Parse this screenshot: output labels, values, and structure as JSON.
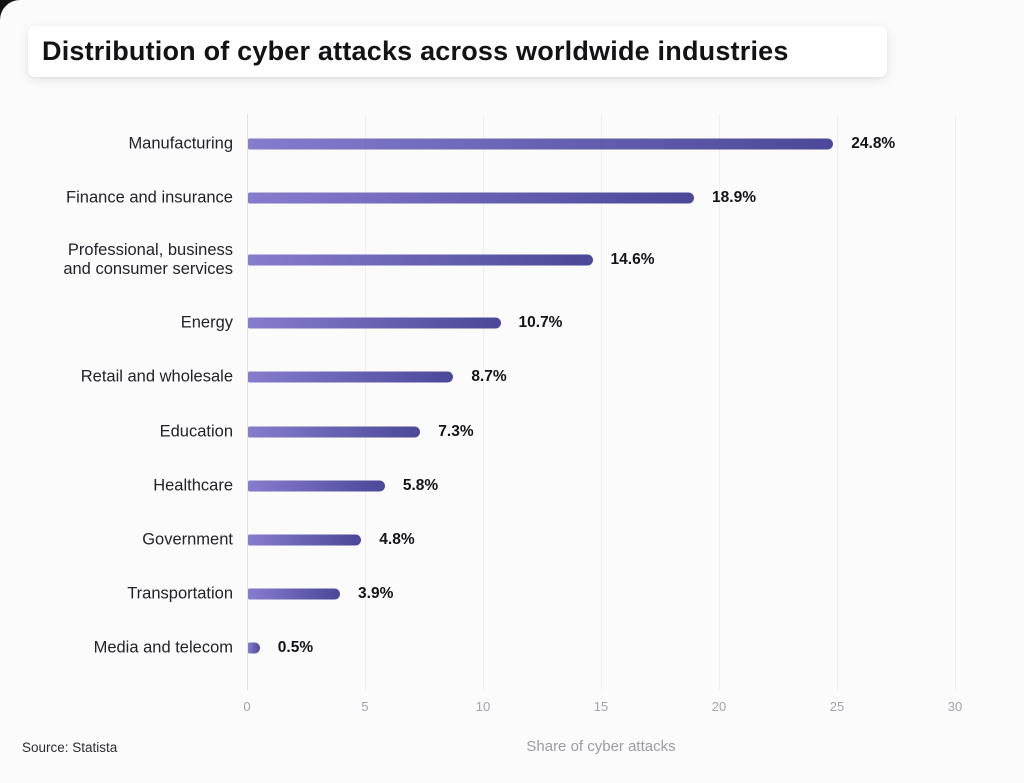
{
  "header": {
    "title": "Distribution of cyber attacks across worldwide industries"
  },
  "footer": {
    "source": "Source: Statista"
  },
  "chart_data": {
    "type": "bar",
    "orientation": "horizontal",
    "title": "Distribution of cyber attacks across worldwide industries",
    "xlabel": "Share of cyber attacks",
    "ylabel": "",
    "unit": "%",
    "xlim": [
      0,
      30
    ],
    "x_ticks": [
      "0",
      "5",
      "10",
      "15",
      "20",
      "25",
      "30"
    ],
    "grid": true,
    "legend": false,
    "categories": [
      "Manufacturing",
      "Finance and insurance",
      "Professional, business\nand consumer services",
      "Energy",
      "Retail and wholesale",
      "Education",
      "Healthcare",
      "Government",
      "Transportation",
      "Media and telecom"
    ],
    "values": [
      24.8,
      18.9,
      14.6,
      10.7,
      8.7,
      7.3,
      5.8,
      4.8,
      3.9,
      0.5
    ],
    "value_labels": [
      "24.8%",
      "18.9%",
      "14.6%",
      "10.7%",
      "8.7%",
      "7.3%",
      "5.8%",
      "4.8%",
      "3.9%",
      "0.5%"
    ],
    "bar_gradient_start": "#867CCD",
    "bar_gradient_end": "#4B4899",
    "tick_color": "#a2a2aa",
    "axis_title_color": "#9b9ba3"
  }
}
